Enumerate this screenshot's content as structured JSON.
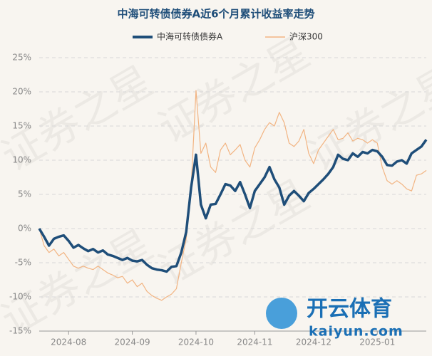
{
  "chart_data": {
    "type": "line",
    "title": "中海可转债债券A近6个月累计收益率走势",
    "categories": [
      null,
      null,
      null,
      null,
      null,
      null,
      "2024-08",
      null,
      null,
      null,
      null,
      null,
      null,
      null,
      null,
      null,
      null,
      null,
      null,
      "2024-09",
      null,
      null,
      null,
      null,
      null,
      null,
      null,
      null,
      null,
      null,
      null,
      null,
      "2024-10",
      null,
      null,
      null,
      null,
      null,
      null,
      null,
      null,
      null,
      null,
      null,
      "2024-11",
      null,
      null,
      null,
      null,
      null,
      null,
      null,
      null,
      null,
      null,
      null,
      "2024-12",
      null,
      null,
      null,
      null,
      null,
      null,
      null,
      null,
      null,
      null,
      null,
      null,
      "2025-01",
      null,
      null,
      null,
      null,
      null,
      null,
      null,
      null,
      null,
      null
    ],
    "series": [
      {
        "name": "中海可转债债券A",
        "color": "#1f4e79",
        "values": [
          0,
          -1.2,
          -2.5,
          -1.5,
          -1.2,
          -1.0,
          -1.8,
          -2.8,
          -2.4,
          -2.9,
          -3.3,
          -3.0,
          -3.5,
          -3.2,
          -3.8,
          -4.0,
          -4.3,
          -4.6,
          -4.3,
          -4.7,
          -4.8,
          -4.6,
          -5.3,
          -5.8,
          -6.0,
          -6.1,
          -6.3,
          -5.6,
          -5.5,
          -3.5,
          -0.5,
          6.0,
          10.8,
          3.5,
          1.5,
          3.5,
          3.6,
          5.0,
          6.5,
          6.3,
          5.5,
          6.8,
          5.0,
          3.0,
          5.5,
          6.5,
          7.5,
          9.0,
          7.2,
          6.0,
          3.5,
          4.8,
          5.5,
          4.8,
          4.0,
          5.2,
          5.8,
          6.5,
          7.2,
          8.0,
          9.0,
          10.8,
          10.2,
          10.0,
          11.0,
          10.5,
          11.2,
          11.0,
          11.5,
          11.3,
          10.5,
          9.3,
          9.2,
          9.8,
          10.0,
          9.5,
          11.0,
          11.5,
          12.0,
          13.0
        ]
      },
      {
        "name": "沪深300",
        "color": "#f2b482",
        "values": [
          0,
          -2.5,
          -3.5,
          -3.0,
          -4.0,
          -3.5,
          -4.5,
          -5.5,
          -5.8,
          -5.5,
          -5.8,
          -6.0,
          -5.5,
          -6.0,
          -6.5,
          -6.8,
          -7.2,
          -7.0,
          -8.0,
          -7.5,
          -8.5,
          -8.0,
          -9.2,
          -9.8,
          -10.2,
          -10.5,
          -10.0,
          -9.6,
          -8.8,
          -5.0,
          -1.5,
          6.0,
          20.2,
          11.0,
          12.5,
          9.0,
          8.2,
          11.5,
          12.5,
          10.8,
          11.5,
          12.3,
          10.0,
          9.0,
          11.8,
          13.0,
          14.5,
          15.5,
          15.0,
          17.0,
          15.5,
          12.5,
          12.0,
          12.8,
          14.5,
          11.0,
          9.5,
          11.5,
          12.5,
          13.5,
          14.5,
          13.0,
          13.2,
          14.0,
          12.8,
          13.2,
          13.0,
          12.5,
          13.0,
          12.5,
          9.0,
          7.0,
          6.5,
          7.0,
          6.5,
          5.8,
          5.5,
          7.8,
          8.0,
          8.5
        ]
      }
    ],
    "ylim": [
      -15,
      25
    ],
    "yticks": [
      {
        "value": -15,
        "label": "-15%"
      },
      {
        "value": -10,
        "label": "-10%"
      },
      {
        "value": -5,
        "label": "-5%"
      },
      {
        "value": 0,
        "label": "0%"
      },
      {
        "value": 5,
        "label": "5%"
      },
      {
        "value": 10,
        "label": "10%"
      },
      {
        "value": 15,
        "label": "15%"
      },
      {
        "value": 20,
        "label": "20%"
      },
      {
        "value": 25,
        "label": "25%"
      }
    ],
    "grid": true,
    "legend": "top",
    "watermark": "证券之星",
    "logo_text": "开云体育",
    "logo_url": "kaiyun.com"
  }
}
